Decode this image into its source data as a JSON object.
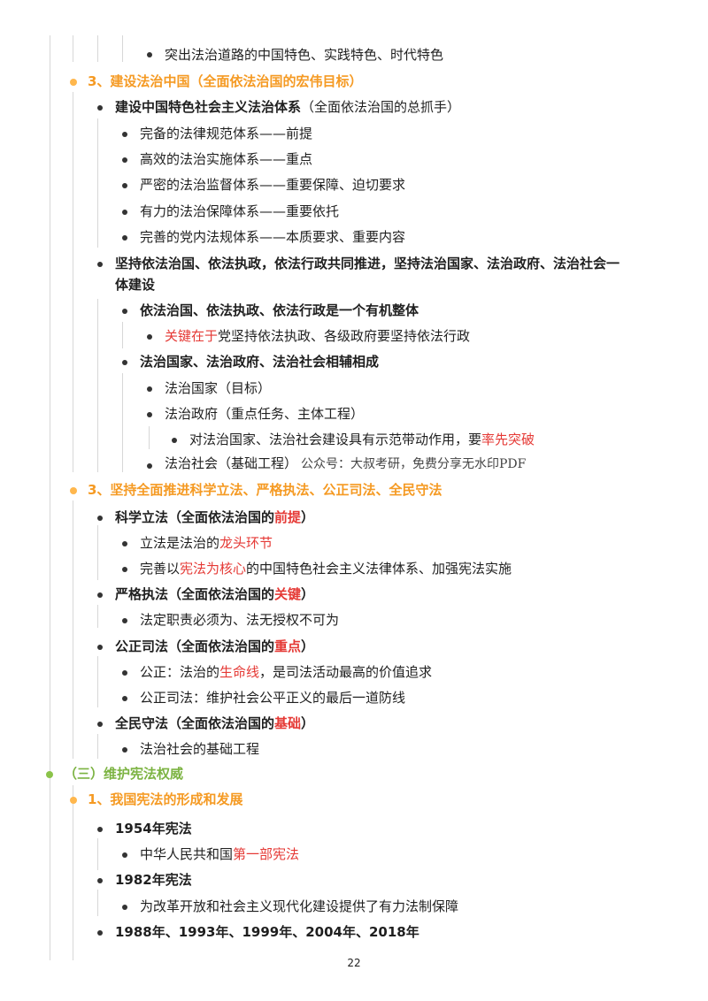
{
  "lines": [
    {
      "id": "l1",
      "segments": [
        {
          "text": "突出法治道路的中国特色、实践特色、时代特色"
        }
      ]
    },
    {
      "id": "l2",
      "segments": [
        {
          "text": "3、建设法治中国（全面依法治国的宏伟目标）",
          "style": "orange"
        }
      ]
    },
    {
      "id": "l3",
      "segments": [
        {
          "text": "建设中国特色社会主义法治体系",
          "style": "b"
        },
        {
          "text": "（全面依法治国的总抓手）"
        }
      ]
    },
    {
      "id": "l4",
      "segments": [
        {
          "text": "完备的法律规范体系——前提"
        }
      ]
    },
    {
      "id": "l5",
      "segments": [
        {
          "text": "高效的法治实施体系——重点"
        }
      ]
    },
    {
      "id": "l6",
      "segments": [
        {
          "text": "严密的法治监督体系——重要保障、迫切要求"
        }
      ]
    },
    {
      "id": "l7",
      "segments": [
        {
          "text": "有力的法治保障体系——重要依托"
        }
      ]
    },
    {
      "id": "l8",
      "segments": [
        {
          "text": "完善的党内法规体系——本质要求、重要内容"
        }
      ]
    },
    {
      "id": "l9",
      "segments": [
        {
          "text": "坚持依法治国、依法执政，依法行政共同推进，坚持法治国家、法治政府、法治社会一",
          "style": "b"
        }
      ]
    },
    {
      "id": "l9b",
      "segments": [
        {
          "text": "体建设",
          "style": "b"
        }
      ]
    },
    {
      "id": "l10",
      "segments": [
        {
          "text": "依法治国、依法执政、依法行政是一个有机整体",
          "style": "b"
        }
      ]
    },
    {
      "id": "l11",
      "segments": [
        {
          "text": "关键在于",
          "style": "red"
        },
        {
          "text": "党坚持依法执政、各级政府要坚持依法行政"
        }
      ]
    },
    {
      "id": "l12",
      "segments": [
        {
          "text": "法治国家、法治政府、法治社会相辅相成",
          "style": "b"
        }
      ]
    },
    {
      "id": "l13",
      "segments": [
        {
          "text": "法治国家（目标）"
        }
      ]
    },
    {
      "id": "l14",
      "segments": [
        {
          "text": "法治政府（重点任务、主体工程）"
        }
      ]
    },
    {
      "id": "l15",
      "segments": [
        {
          "text": "对法治国家、法治社会建设具有示范带动作用，要"
        },
        {
          "text": "率先突破",
          "style": "red"
        }
      ]
    },
    {
      "id": "l16",
      "segments": [
        {
          "text": "法治社会（基础工程）"
        },
        {
          "text": "公众号：大叔考研，免费分享无水印PDF",
          "style": "watermark"
        }
      ]
    },
    {
      "id": "l17",
      "segments": [
        {
          "text": "3、坚持全面推进科学立法、严格执法、公正司法、全民守法",
          "style": "orange"
        }
      ]
    },
    {
      "id": "l18",
      "segments": [
        {
          "text": "科学立法（全面依法治国的",
          "style": "b"
        },
        {
          "text": "前提",
          "style": "b red"
        },
        {
          "text": "）",
          "style": "b"
        }
      ]
    },
    {
      "id": "l19",
      "segments": [
        {
          "text": "立法是法治的"
        },
        {
          "text": "龙头环节",
          "style": "red"
        }
      ]
    },
    {
      "id": "l20",
      "segments": [
        {
          "text": "完善以"
        },
        {
          "text": "宪法为核心",
          "style": "red"
        },
        {
          "text": "的中国特色社会主义法律体系、加强宪法实施"
        }
      ]
    },
    {
      "id": "l21",
      "segments": [
        {
          "text": "严格执法（全面依法治国的",
          "style": "b"
        },
        {
          "text": "关键",
          "style": "b red"
        },
        {
          "text": "）",
          "style": "b"
        }
      ]
    },
    {
      "id": "l22",
      "segments": [
        {
          "text": "法定职责必须为、法无授权不可为"
        }
      ]
    },
    {
      "id": "l23",
      "segments": [
        {
          "text": "公正司法（全面依法治国的",
          "style": "b"
        },
        {
          "text": "重点",
          "style": "b red"
        },
        {
          "text": "）",
          "style": "b"
        }
      ]
    },
    {
      "id": "l24",
      "segments": [
        {
          "text": "公正：法治的"
        },
        {
          "text": "生命线",
          "style": "red"
        },
        {
          "text": "，是司法活动最高的价值追求"
        }
      ]
    },
    {
      "id": "l25",
      "segments": [
        {
          "text": "公正司法：维护社会公平正义的最后一道防线"
        }
      ]
    },
    {
      "id": "l26",
      "segments": [
        {
          "text": "全民守法（全面依法治国的",
          "style": "b"
        },
        {
          "text": "基础",
          "style": "b red"
        },
        {
          "text": "）",
          "style": "b"
        }
      ]
    },
    {
      "id": "l27",
      "segments": [
        {
          "text": "法治社会的基础工程"
        }
      ]
    },
    {
      "id": "l28",
      "segments": [
        {
          "text": "（三）维护宪法权威",
          "style": "green"
        }
      ]
    },
    {
      "id": "l29",
      "segments": [
        {
          "text": "1、我国宪法的形成和发展",
          "style": "orange"
        }
      ]
    },
    {
      "id": "l30",
      "segments": [
        {
          "text": "1954年宪法",
          "style": "b"
        }
      ]
    },
    {
      "id": "l31",
      "segments": [
        {
          "text": "中华人民共和国"
        },
        {
          "text": "第一部宪法",
          "style": "red"
        }
      ]
    },
    {
      "id": "l32",
      "segments": [
        {
          "text": "1982年宪法",
          "style": "b"
        }
      ]
    },
    {
      "id": "l33",
      "segments": [
        {
          "text": "为改革开放和社会主义现代化建设提供了有力法制保障"
        }
      ]
    },
    {
      "id": "l34",
      "segments": [
        {
          "text": "1988年、1993年、1999年、2004年、2018年",
          "style": "b"
        }
      ]
    }
  ],
  "page_number": "22"
}
